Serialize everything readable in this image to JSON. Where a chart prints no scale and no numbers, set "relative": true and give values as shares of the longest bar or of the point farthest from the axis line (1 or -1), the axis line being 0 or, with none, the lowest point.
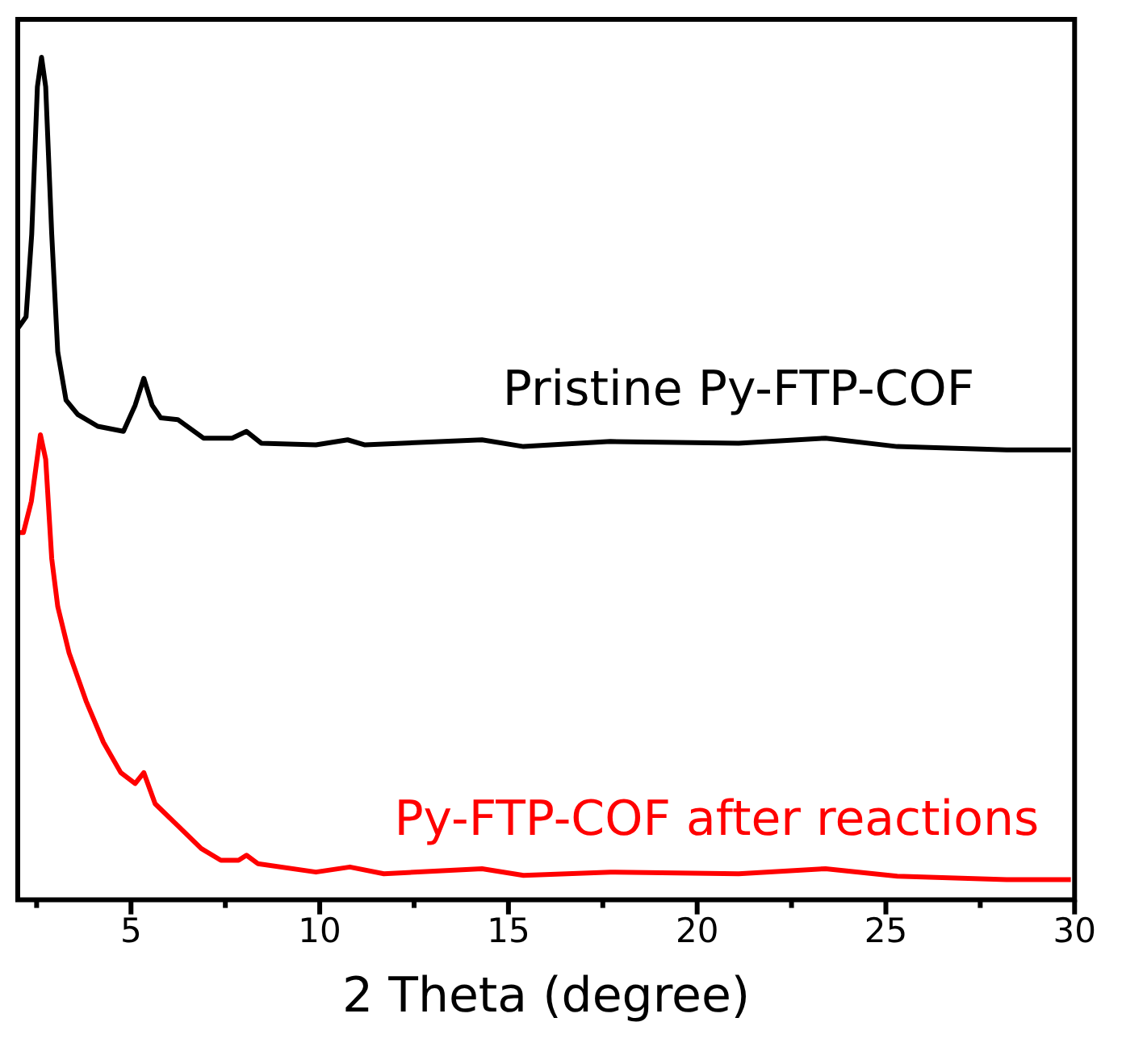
{
  "chart_data": {
    "type": "line",
    "xlabel": "2 Theta (degree)",
    "relative": true,
    "xlim": [
      2,
      30
    ],
    "xticks": [
      {
        "value": 2.5,
        "label": null
      },
      5,
      {
        "value": 7.5,
        "label": null
      },
      10,
      {
        "value": 12.5,
        "label": null
      },
      15,
      {
        "value": 17.5,
        "label": null
      },
      20,
      {
        "value": 22.5,
        "label": null
      },
      25,
      {
        "value": 27.5,
        "label": null
      },
      30
    ],
    "grid": false,
    "legend": false,
    "marker": "none",
    "line_style": "solid",
    "series": [
      {
        "name": "Pristine Py-FTP-COF",
        "color": "#000000",
        "x": [
          2.0,
          2.22,
          2.37,
          2.52,
          2.63,
          2.74,
          2.9,
          3.06,
          3.28,
          3.59,
          4.12,
          4.8,
          5.11,
          5.34,
          5.56,
          5.79,
          6.24,
          6.92,
          7.68,
          8.06,
          8.45,
          9.9,
          10.74,
          11.2,
          14.3,
          15.4,
          17.7,
          21.1,
          23.4,
          25.3,
          28.2,
          29.9
        ],
        "values": [
          0.678,
          0.692,
          0.79,
          0.965,
          1.0,
          0.965,
          0.79,
          0.65,
          0.593,
          0.576,
          0.562,
          0.556,
          0.587,
          0.619,
          0.587,
          0.572,
          0.57,
          0.548,
          0.548,
          0.556,
          0.542,
          0.54,
          0.546,
          0.54,
          0.546,
          0.538,
          0.544,
          0.542,
          0.548,
          0.538,
          0.534,
          0.534
        ]
      },
      {
        "name": "Py-FTP-COF after reactions",
        "color": "#ff0000",
        "x": [
          2.0,
          2.15,
          2.36,
          2.6,
          2.74,
          2.9,
          3.06,
          3.36,
          3.81,
          4.27,
          4.73,
          5.11,
          5.34,
          5.64,
          6.24,
          6.86,
          7.38,
          7.85,
          8.06,
          8.36,
          9.9,
          10.8,
          11.7,
          14.3,
          15.4,
          17.7,
          21.1,
          23.4,
          25.3,
          28.2,
          29.9
        ],
        "values": [
          0.436,
          0.436,
          0.473,
          0.552,
          0.523,
          0.405,
          0.348,
          0.293,
          0.236,
          0.187,
          0.151,
          0.138,
          0.151,
          0.114,
          0.088,
          0.061,
          0.047,
          0.047,
          0.053,
          0.043,
          0.033,
          0.039,
          0.031,
          0.037,
          0.029,
          0.033,
          0.031,
          0.037,
          0.028,
          0.024,
          0.024
        ]
      }
    ]
  }
}
